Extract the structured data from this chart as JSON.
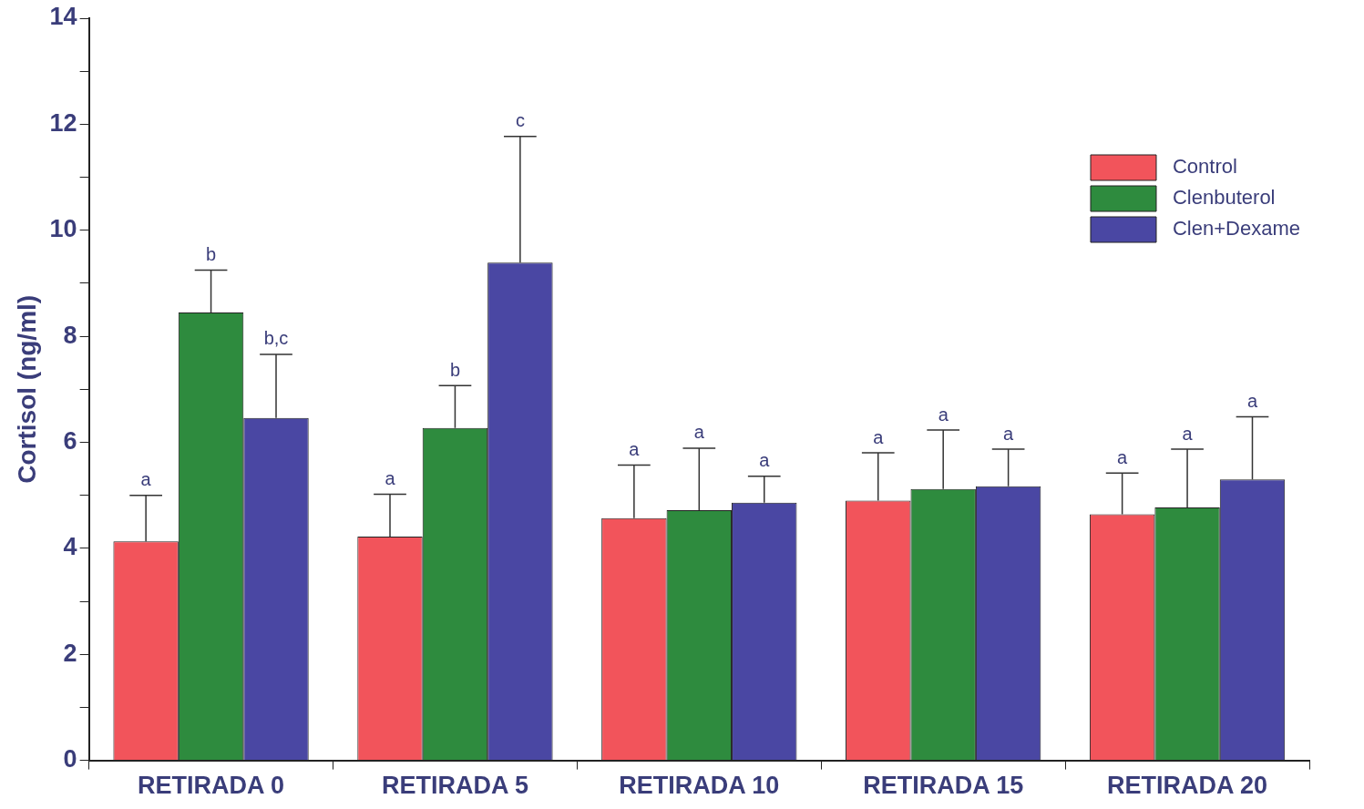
{
  "chart_data": {
    "type": "bar",
    "ylabel": "Cortisol (ng/ml)",
    "categories": [
      "RETIRADA 0",
      "RETIRADA 5",
      "RETIRADA 10",
      "RETIRADA 15",
      "RETIRADA 20"
    ],
    "series": [
      {
        "name": "Control",
        "color": "#f2545b",
        "values": [
          4.13,
          4.22,
          4.57,
          4.9,
          4.64
        ],
        "errors": [
          [
            4.13,
            5.0
          ],
          [
            4.22,
            5.02
          ],
          [
            4.57,
            5.57
          ],
          [
            4.9,
            5.8
          ],
          [
            4.64,
            5.42
          ]
        ]
      },
      {
        "name": "Clenbuterol",
        "color": "#2e8b3e",
        "values": [
          8.45,
          6.27,
          4.72,
          5.12,
          4.77
        ],
        "errors": [
          [
            8.45,
            9.25
          ],
          [
            6.27,
            7.07
          ],
          [
            4.72,
            5.89
          ],
          [
            5.12,
            6.23
          ],
          [
            4.77,
            5.87
          ]
        ]
      },
      {
        "name": "Clen+Dexame",
        "color": "#4a47a3",
        "values": [
          6.46,
          9.39,
          4.86,
          5.17,
          5.3
        ],
        "errors": [
          [
            6.46,
            7.66
          ],
          [
            9.39,
            11.77
          ],
          [
            4.86,
            5.36
          ],
          [
            5.17,
            5.87
          ],
          [
            5.3,
            6.48
          ]
        ]
      }
    ],
    "ylim": [
      0,
      14
    ],
    "yticks": [
      0,
      {
        "value": 1,
        "label": null
      },
      2,
      {
        "value": 3,
        "label": null
      },
      4,
      {
        "value": 5,
        "label": null
      },
      6,
      {
        "value": 7,
        "label": null
      },
      8,
      {
        "value": 9,
        "label": null
      },
      10,
      {
        "value": 11,
        "label": null
      },
      12,
      {
        "value": 13,
        "label": null
      },
      14
    ],
    "grid": false,
    "legend": "top right",
    "annotations": [
      "a",
      "b",
      "b,c",
      "a",
      "b",
      "c",
      "a",
      "a",
      "a",
      "a",
      "a",
      "a",
      "a",
      "a",
      "a"
    ]
  }
}
